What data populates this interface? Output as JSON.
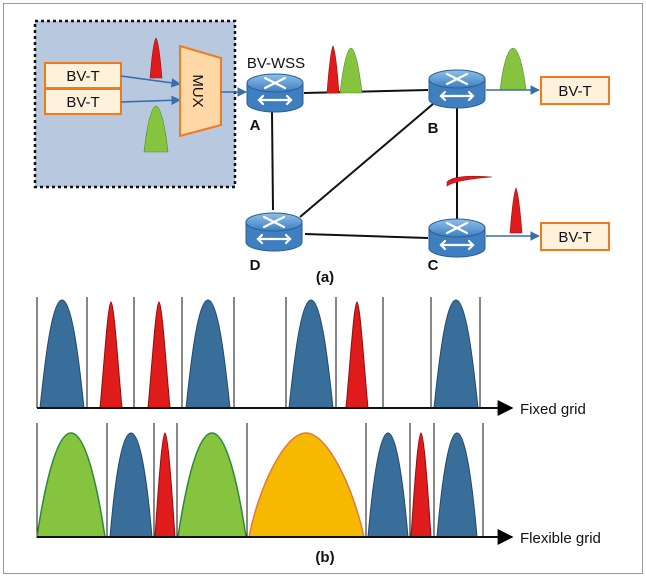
{
  "part_a": {
    "caption": "(a)",
    "transmitter_labels": [
      "BV-T",
      "BV-T"
    ],
    "mux_label": "MUX",
    "wss_label": "BV-WSS",
    "nodes": [
      "A",
      "B",
      "C",
      "D"
    ],
    "receiver_labels": [
      "BV-T",
      "BV-T"
    ]
  },
  "part_b": {
    "caption": "(b)",
    "fixed_grid_label": "Fixed grid",
    "flexible_grid_label": "Flexible grid",
    "fixed_grid_signals": [
      "blue",
      "red",
      "red",
      "blue",
      "blue",
      "red",
      "blue"
    ],
    "flexible_grid_signals": [
      "green",
      "blue",
      "red",
      "green",
      "yellow",
      "blue",
      "red",
      "blue"
    ]
  },
  "colors": {
    "blue_signal": "#3a6e9a",
    "red_signal": "#e01b1b",
    "green_signal": "#86c440",
    "yellow_signal": "#f7b800",
    "transponder_fill": "#fff2dc",
    "transponder_border": "#f07a1e",
    "mux_fill": "#ffd8a6",
    "router_blue": "#5b9bd5",
    "panel_bg": "#b8c9df"
  }
}
